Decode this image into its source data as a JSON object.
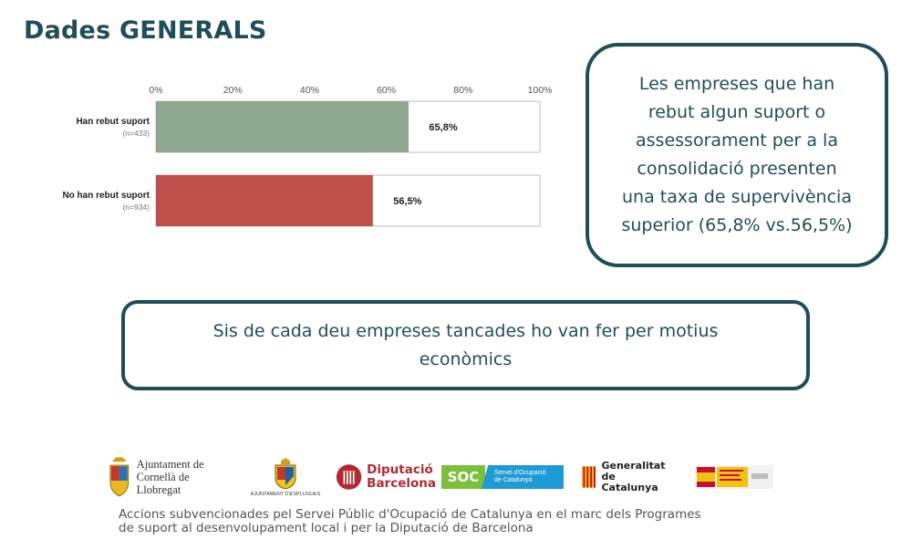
{
  "page": {
    "title": "Dades GENERALS"
  },
  "chart_data": {
    "type": "bar",
    "orientation": "horizontal",
    "x_ticks": [
      "0%",
      "20%",
      "40%",
      "60%",
      "80%",
      "100%"
    ],
    "xlim": [
      0,
      100
    ],
    "categories": [
      {
        "label": "Han rebut suport",
        "n": "(n=433)",
        "value": 65.8,
        "value_label": "65,8%",
        "color": "#8fa991"
      },
      {
        "label": "No han rebut suport",
        "n": "(n=934)",
        "value": 56.5,
        "value_label": "56,5%",
        "color": "#c0504d"
      }
    ],
    "grid": false
  },
  "callout_right": {
    "lines": [
      "Les empreses que han",
      "rebut algun suport o",
      "assessorament per a la",
      "consolidació presenten",
      "una taxa de supervivència",
      "superior  (65,8% vs.56,5%)"
    ]
  },
  "callout_bottom": {
    "line1": "Sis de cada deu empreses  tancades ho van fer per motius",
    "line2": "econòmics"
  },
  "logos": {
    "cornella_line1": "Ajuntament de",
    "cornella_line2": "Cornellà de Llobregat",
    "esplugues": "AJUNTAMENT D'ESPLUGUES",
    "diputacio_line1": "Diputació",
    "diputacio_line2": "Barcelona",
    "soc": "SOC",
    "soc_sub_line1": "Servei d'Ocupació",
    "soc_sub_line2": "de Catalunya",
    "generalitat_line1": "Generalitat",
    "generalitat_line2": "de Catalunya"
  },
  "footer": {
    "line1": "Accions subvencionades pel Servei Públic d'Ocupació de Catalunya en el marc dels Programes",
    "line2": "de suport al desenvolupament local i per la Diputació de Barcelona"
  },
  "colors": {
    "accent": "#1f4e5a",
    "bar_supported": "#8fa991",
    "bar_not_supported": "#c0504d",
    "diputacio_red": "#b22a31",
    "soc_green": "#7bbf3a",
    "soc_blue": "#1e9ad6"
  }
}
